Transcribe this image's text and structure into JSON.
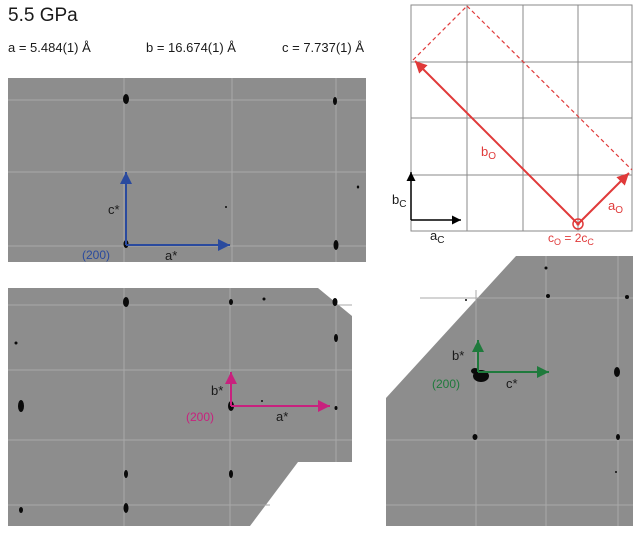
{
  "title": "5.5 GPa",
  "lattice": {
    "a": "a = 5.484(1) Å",
    "b": "b = 16.674(1) Å",
    "c": "c = 7.737(1) Å"
  },
  "schematic": {
    "b_c": "b",
    "b_c_sub": "C",
    "a_c": "a",
    "a_c_sub": "C",
    "b_o": "b",
    "b_o_sub": "O",
    "a_o": "a",
    "a_o_sub": "O",
    "c_o_eq": "c",
    "c_o_eq_sub": "O",
    "c_o_eq_rhs": " = 2c",
    "c_o_eq_rhs_sub": "C"
  },
  "panel1": {
    "reflection": "(200)",
    "axis_x": "a*",
    "axis_y": "c*",
    "color": "#2a4a9e"
  },
  "panel2": {
    "reflection": "(200)",
    "axis_x": "a*",
    "axis_y": "b*",
    "color": "#c8217e"
  },
  "panel3": {
    "reflection": "(200)",
    "axis_x": "c*",
    "axis_y": "b*",
    "color": "#1f7a3c"
  },
  "colors": {
    "red": "#e03a3a",
    "grey": "#9a9a9a"
  }
}
